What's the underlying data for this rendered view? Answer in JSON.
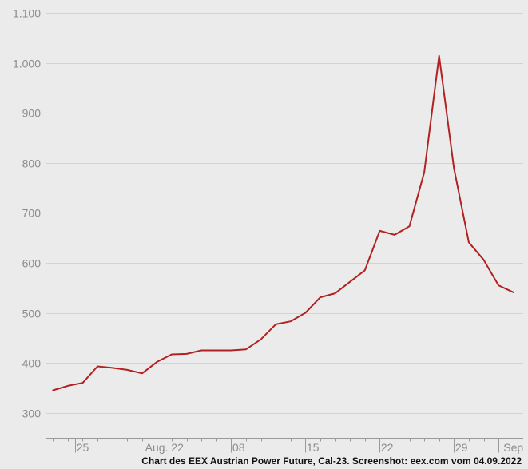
{
  "colors": {
    "background": "#ebebeb",
    "series": "#b22222",
    "grid": "#d3d3d3",
    "tick_text": "#8c8c8c"
  },
  "caption": "Chart des EEX Austrian Power Future, Cal-23. Screenshot: eex.com vom 04.09.2022",
  "chart_data": {
    "type": "line",
    "ylim": [
      250,
      1100
    ],
    "yticks": [
      300,
      400,
      500,
      600,
      700,
      800,
      900,
      1000,
      1100
    ],
    "ytick_labels": [
      "300",
      "400",
      "500",
      "600",
      "700",
      "800",
      "900",
      "1.000",
      "1.100"
    ],
    "grid": true,
    "x_range": [
      0,
      32
    ],
    "x_labels": [
      {
        "x": 2.5,
        "label": "25"
      },
      {
        "x": 8,
        "label": "Aug. 22"
      },
      {
        "x": 13,
        "label": "08"
      },
      {
        "x": 18,
        "label": "15"
      },
      {
        "x": 23,
        "label": "22"
      },
      {
        "x": 28,
        "label": "29"
      },
      {
        "x": 31.5,
        "label": "Sep"
      }
    ],
    "x_minor_ticks": [
      0.5,
      1.5,
      2.5,
      3.5,
      4.5,
      5.5,
      6.5,
      7.5,
      8.5,
      9.5,
      10.5,
      11.5,
      12.5,
      13.5,
      14.5,
      15.5,
      16.5,
      17.5,
      18.5,
      19.5,
      20.5,
      21.5,
      22.5,
      23.5,
      24.5,
      25.5,
      26.5,
      27.5,
      28.5,
      29.5,
      30.5,
      31.5
    ],
    "x_major_ticks": [
      2,
      7.5,
      12.5,
      17.5,
      22.5,
      27.5,
      30.5
    ],
    "series": [
      {
        "x": [
          0.5,
          1.5,
          2.5,
          3.5,
          4.5,
          5.5,
          6.5,
          7.5,
          8.5,
          9.5,
          10.5,
          11.5,
          12.5,
          13.5,
          14.5,
          15.5,
          16.5,
          17.5,
          18.5,
          19.5,
          20.5,
          21.5,
          22.5,
          23.5,
          24.5,
          25.5,
          26.5,
          27.5,
          28.5,
          29.5,
          30.5,
          31.5
        ],
        "values": [
          345,
          354,
          360,
          393,
          390,
          386,
          379,
          402,
          417,
          418,
          425,
          425,
          425,
          427,
          447,
          477,
          483,
          500,
          531,
          539,
          562,
          585,
          664,
          656,
          673,
          781,
          1014,
          789,
          641,
          606,
          555,
          541
        ]
      }
    ]
  }
}
